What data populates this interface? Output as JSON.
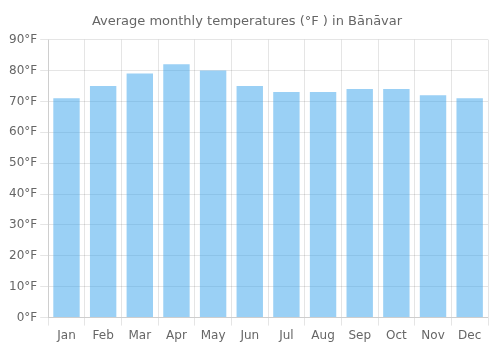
{
  "chart_data": {
    "type": "bar",
    "title": "Average monthly temperatures (°F ) in Bānāvar",
    "categories": [
      "Jan",
      "Feb",
      "Mar",
      "Apr",
      "May",
      "Jun",
      "Jul",
      "Aug",
      "Sep",
      "Oct",
      "Nov",
      "Dec"
    ],
    "values": [
      71,
      75,
      79,
      82,
      80,
      75,
      73,
      73,
      74,
      74,
      72,
      71
    ],
    "ylim": [
      0,
      90
    ],
    "yticks": [
      {
        "value": 0,
        "label": "0°F"
      },
      {
        "value": 10,
        "label": "10°F"
      },
      {
        "value": 20,
        "label": "20°F"
      },
      {
        "value": 30,
        "label": "30°F"
      },
      {
        "value": 40,
        "label": "40°F"
      },
      {
        "value": 50,
        "label": "50°F"
      },
      {
        "value": 60,
        "label": "60°F"
      },
      {
        "value": 70,
        "label": "70°F"
      },
      {
        "value": 80,
        "label": "80°F"
      },
      {
        "value": 90,
        "label": "90°F"
      }
    ],
    "grid": true
  }
}
